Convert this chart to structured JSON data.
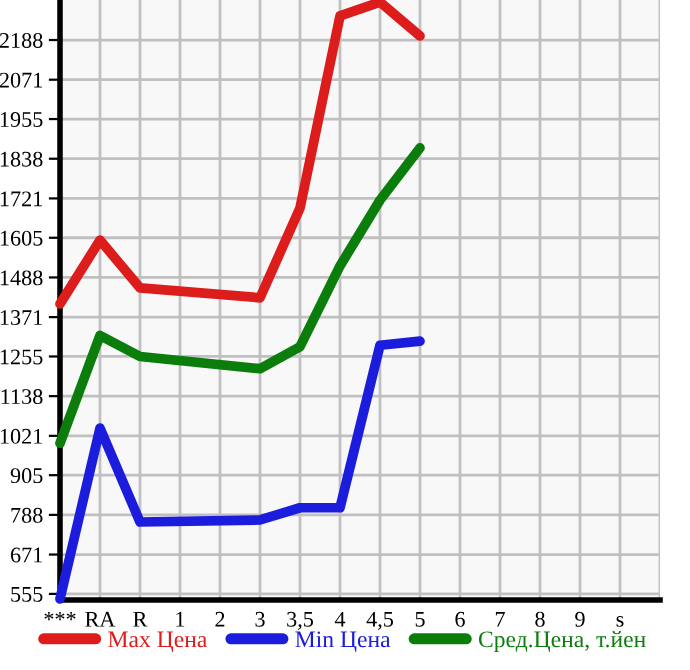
{
  "chart_data": {
    "type": "line",
    "categories": [
      "***",
      "RA",
      "R",
      "1",
      "2",
      "3",
      "3,5",
      "4",
      "4,5",
      "5",
      "6",
      "7",
      "8",
      "9",
      "s"
    ],
    "series": [
      {
        "name": "Max Цена",
        "color": "#dd1c1c",
        "values": [
          1410,
          1598,
          1457,
          null,
          null,
          1428,
          1693,
          2259,
          2300,
          2200,
          null,
          null,
          null,
          null,
          null
        ]
      },
      {
        "name": "Min Цена",
        "color": "#1c1cdd",
        "values": [
          540,
          1044,
          767,
          null,
          null,
          773,
          809,
          809,
          1288,
          1300,
          null,
          null,
          null,
          null,
          null
        ]
      },
      {
        "name": "Сред.Цена, т.йен",
        "color": "#0a7d0a",
        "values": [
          999,
          1317,
          1255,
          null,
          null,
          1219,
          1284,
          1522,
          1716,
          1870,
          null,
          null,
          null,
          null,
          null
        ]
      }
    ],
    "ylim": [
      537,
      2306
    ],
    "yticks": [
      555,
      671,
      788,
      905,
      1021,
      1138,
      1255,
      1371,
      1488,
      1605,
      1721,
      1838,
      1955,
      2071,
      2188
    ],
    "grid": true,
    "legend": "bottom",
    "marker": "none",
    "line_style": "solid"
  }
}
